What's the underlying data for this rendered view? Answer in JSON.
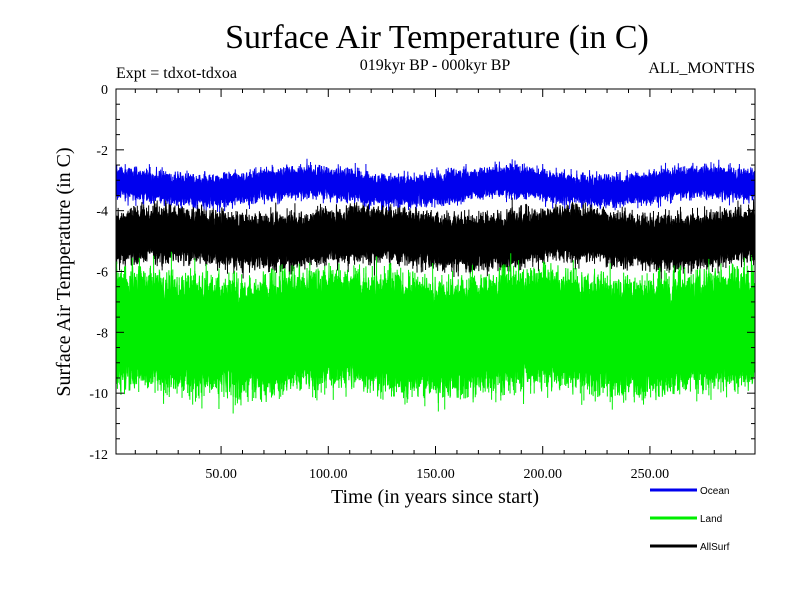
{
  "chart_data": {
    "type": "line",
    "title": "Surface Air Temperature (in C)",
    "subtitle": "019kyr BP - 000kyr BP",
    "experiment_label": "Expt = tdxot-tdxoa",
    "months_label": "ALL_MONTHS",
    "xlabel": "Time (in years since start)",
    "ylabel": "Surface Air Temperature (in C)",
    "xlim": [
      1,
      299
    ],
    "ylim": [
      -12,
      0
    ],
    "x_ticks": [
      50,
      100,
      150,
      200,
      250
    ],
    "x_tick_labels": [
      "50.00",
      "100.00",
      "150.00",
      "200.00",
      "250.00"
    ],
    "y_ticks": [
      0,
      -2,
      -4,
      -6,
      -8,
      -10,
      -12
    ],
    "y_tick_labels": [
      "0",
      "-2",
      "-4",
      "-6",
      "-8",
      "-10",
      "-12"
    ],
    "legend_position": "bottom-right, below plot",
    "series": [
      {
        "name": "AllSurf",
        "color": "#000000",
        "center": -4.9,
        "half_width": 0.6,
        "noise": 0.35
      },
      {
        "name": "Land",
        "color": "#00ee00",
        "center": -8.0,
        "half_width": 1.4,
        "noise": 0.6
      },
      {
        "name": "Ocean",
        "color": "#0000ee",
        "center": -3.2,
        "half_width": 0.3,
        "noise": 0.25
      }
    ],
    "legend_order": [
      "Ocean",
      "Land",
      "AllSurf"
    ]
  }
}
